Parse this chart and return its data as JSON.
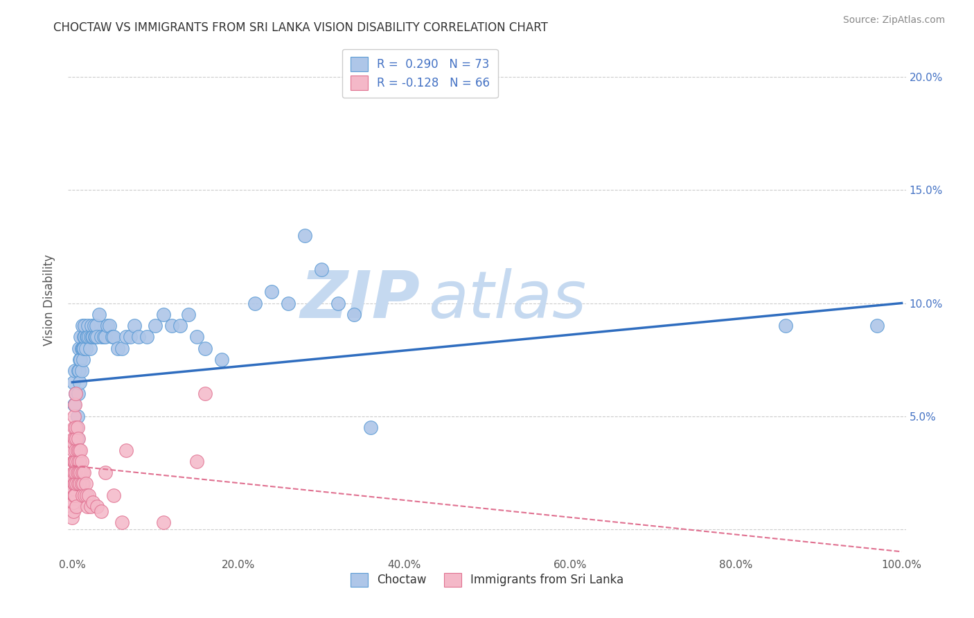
{
  "title": "CHOCTAW VS IMMIGRANTS FROM SRI LANKA VISION DISABILITY CORRELATION CHART",
  "source": "Source: ZipAtlas.com",
  "ylabel": "Vision Disability",
  "xlabel": "",
  "xlim": [
    -0.005,
    1.005
  ],
  "ylim": [
    -0.012,
    0.215
  ],
  "xticks": [
    0.0,
    0.2,
    0.4,
    0.6,
    0.8,
    1.0
  ],
  "xtick_labels": [
    "0.0%",
    "20.0%",
    "40.0%",
    "60.0%",
    "80.0%",
    "100.0%"
  ],
  "yticks": [
    0.0,
    0.05,
    0.1,
    0.15,
    0.2
  ],
  "ytick_labels_right": [
    "",
    "5.0%",
    "10.0%",
    "15.0%",
    "20.0%"
  ],
  "background_color": "#ffffff",
  "grid_color": "#cccccc",
  "watermark_zip": "ZIP",
  "watermark_atlas": "atlas",
  "legend_label_blue": "R =  0.290   N = 73",
  "legend_label_pink": "R = -0.128   N = 66",
  "choctaw_color": "#aec6e8",
  "choctaw_edgecolor": "#5b9bd5",
  "srilanka_color": "#f4b8c8",
  "srilanka_edgecolor": "#e07090",
  "choctaw_points": [
    [
      0.001,
      0.065
    ],
    [
      0.002,
      0.055
    ],
    [
      0.003,
      0.07
    ],
    [
      0.004,
      0.06
    ],
    [
      0.005,
      0.045
    ],
    [
      0.006,
      0.05
    ],
    [
      0.006,
      0.04
    ],
    [
      0.007,
      0.07
    ],
    [
      0.007,
      0.06
    ],
    [
      0.008,
      0.08
    ],
    [
      0.008,
      0.07
    ],
    [
      0.009,
      0.075
    ],
    [
      0.009,
      0.065
    ],
    [
      0.01,
      0.085
    ],
    [
      0.01,
      0.075
    ],
    [
      0.011,
      0.08
    ],
    [
      0.011,
      0.07
    ],
    [
      0.012,
      0.08
    ],
    [
      0.012,
      0.09
    ],
    [
      0.013,
      0.08
    ],
    [
      0.013,
      0.075
    ],
    [
      0.014,
      0.085
    ],
    [
      0.014,
      0.08
    ],
    [
      0.015,
      0.085
    ],
    [
      0.015,
      0.09
    ],
    [
      0.016,
      0.08
    ],
    [
      0.017,
      0.085
    ],
    [
      0.018,
      0.085
    ],
    [
      0.019,
      0.09
    ],
    [
      0.02,
      0.085
    ],
    [
      0.021,
      0.08
    ],
    [
      0.022,
      0.085
    ],
    [
      0.023,
      0.09
    ],
    [
      0.024,
      0.085
    ],
    [
      0.025,
      0.085
    ],
    [
      0.026,
      0.09
    ],
    [
      0.027,
      0.085
    ],
    [
      0.028,
      0.085
    ],
    [
      0.029,
      0.09
    ],
    [
      0.03,
      0.085
    ],
    [
      0.032,
      0.095
    ],
    [
      0.035,
      0.085
    ],
    [
      0.038,
      0.085
    ],
    [
      0.04,
      0.085
    ],
    [
      0.042,
      0.09
    ],
    [
      0.045,
      0.09
    ],
    [
      0.048,
      0.085
    ],
    [
      0.05,
      0.085
    ],
    [
      0.055,
      0.08
    ],
    [
      0.06,
      0.08
    ],
    [
      0.065,
      0.085
    ],
    [
      0.07,
      0.085
    ],
    [
      0.075,
      0.09
    ],
    [
      0.08,
      0.085
    ],
    [
      0.09,
      0.085
    ],
    [
      0.1,
      0.09
    ],
    [
      0.11,
      0.095
    ],
    [
      0.12,
      0.09
    ],
    [
      0.13,
      0.09
    ],
    [
      0.14,
      0.095
    ],
    [
      0.15,
      0.085
    ],
    [
      0.16,
      0.08
    ],
    [
      0.18,
      0.075
    ],
    [
      0.22,
      0.1
    ],
    [
      0.24,
      0.105
    ],
    [
      0.26,
      0.1
    ],
    [
      0.28,
      0.13
    ],
    [
      0.3,
      0.115
    ],
    [
      0.32,
      0.1
    ],
    [
      0.34,
      0.095
    ],
    [
      0.36,
      0.045
    ],
    [
      0.86,
      0.09
    ],
    [
      0.97,
      0.09
    ]
  ],
  "srilanka_points": [
    [
      0.0,
      0.01
    ],
    [
      0.0,
      0.02
    ],
    [
      0.0,
      0.005
    ],
    [
      0.001,
      0.015
    ],
    [
      0.001,
      0.025
    ],
    [
      0.001,
      0.03
    ],
    [
      0.001,
      0.008
    ],
    [
      0.001,
      0.018
    ],
    [
      0.001,
      0.022
    ],
    [
      0.001,
      0.035
    ],
    [
      0.001,
      0.04
    ],
    [
      0.001,
      0.012
    ],
    [
      0.002,
      0.02
    ],
    [
      0.002,
      0.03
    ],
    [
      0.002,
      0.038
    ],
    [
      0.002,
      0.045
    ],
    [
      0.002,
      0.015
    ],
    [
      0.002,
      0.025
    ],
    [
      0.002,
      0.05
    ],
    [
      0.003,
      0.02
    ],
    [
      0.003,
      0.03
    ],
    [
      0.003,
      0.04
    ],
    [
      0.003,
      0.055
    ],
    [
      0.003,
      0.015
    ],
    [
      0.004,
      0.025
    ],
    [
      0.004,
      0.035
    ],
    [
      0.004,
      0.045
    ],
    [
      0.004,
      0.06
    ],
    [
      0.005,
      0.02
    ],
    [
      0.005,
      0.03
    ],
    [
      0.005,
      0.04
    ],
    [
      0.005,
      0.01
    ],
    [
      0.006,
      0.025
    ],
    [
      0.006,
      0.035
    ],
    [
      0.006,
      0.045
    ],
    [
      0.007,
      0.02
    ],
    [
      0.007,
      0.03
    ],
    [
      0.007,
      0.04
    ],
    [
      0.008,
      0.025
    ],
    [
      0.008,
      0.035
    ],
    [
      0.009,
      0.02
    ],
    [
      0.009,
      0.03
    ],
    [
      0.01,
      0.025
    ],
    [
      0.01,
      0.035
    ],
    [
      0.011,
      0.02
    ],
    [
      0.011,
      0.03
    ],
    [
      0.012,
      0.025
    ],
    [
      0.012,
      0.015
    ],
    [
      0.013,
      0.02
    ],
    [
      0.014,
      0.025
    ],
    [
      0.015,
      0.015
    ],
    [
      0.016,
      0.02
    ],
    [
      0.017,
      0.015
    ],
    [
      0.018,
      0.01
    ],
    [
      0.02,
      0.015
    ],
    [
      0.022,
      0.01
    ],
    [
      0.025,
      0.012
    ],
    [
      0.03,
      0.01
    ],
    [
      0.035,
      0.008
    ],
    [
      0.04,
      0.025
    ],
    [
      0.05,
      0.015
    ],
    [
      0.06,
      0.003
    ],
    [
      0.065,
      0.035
    ],
    [
      0.11,
      0.003
    ],
    [
      0.15,
      0.03
    ],
    [
      0.16,
      0.06
    ]
  ],
  "choctaw_trend_x": [
    0.0,
    1.0
  ],
  "choctaw_trend_y": [
    0.065,
    0.1
  ],
  "srilanka_trend_x": [
    0.0,
    1.0
  ],
  "srilanka_trend_y": [
    0.028,
    -0.01
  ],
  "trendline_blue_color": "#2f6dbf",
  "trendline_pink_color": "#e07090",
  "title_color": "#333333",
  "axis_label_color": "#555555",
  "tick_color": "#555555",
  "right_tick_color": "#4472c4",
  "watermark_color_zip": "#c5d9f0",
  "watermark_color_atlas": "#c5d9f0",
  "legend_text_color": "#4472c4",
  "bottom_legend_color": "#333333"
}
